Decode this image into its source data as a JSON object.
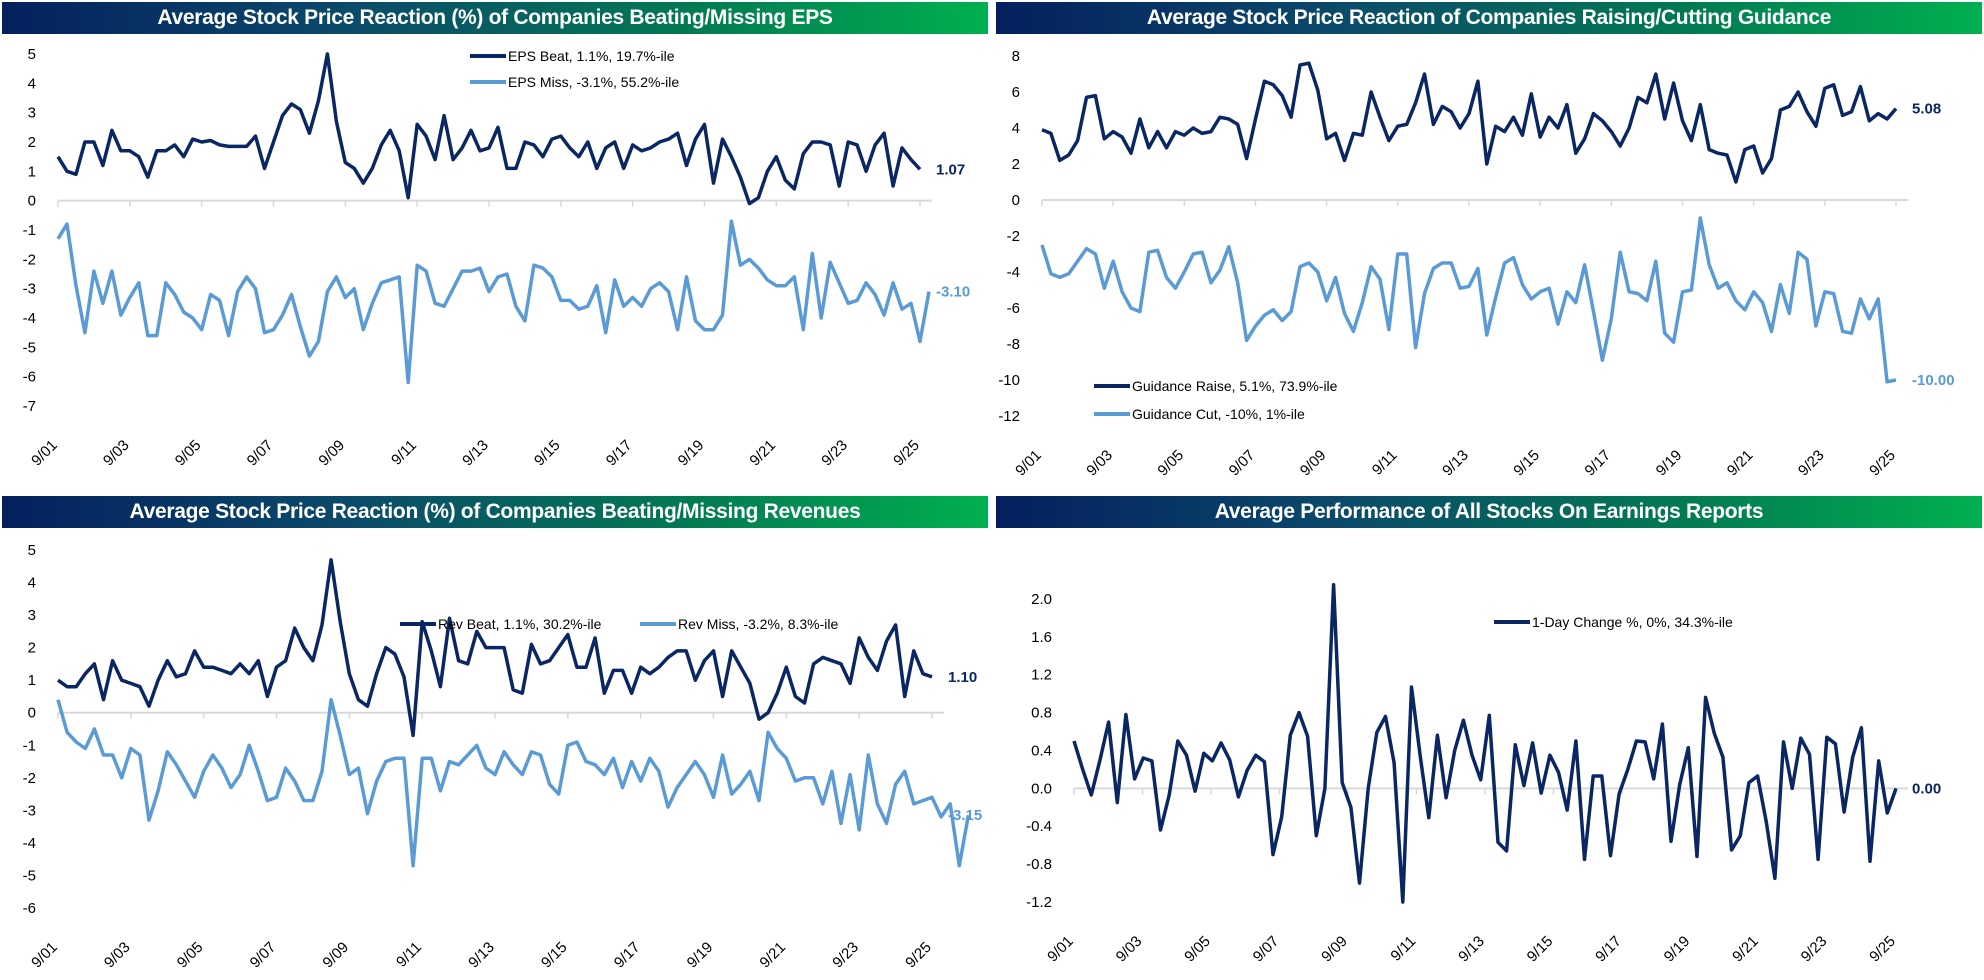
{
  "colors": {
    "dark": "#0a2663",
    "light": "#5b9bd5",
    "grid": "#d9d9d9"
  },
  "x_tick_labels": [
    "9/01",
    "9/03",
    "9/05",
    "9/07",
    "9/09",
    "9/11",
    "9/13",
    "9/15",
    "9/17",
    "9/19",
    "9/21",
    "9/23",
    "9/25"
  ],
  "chart_data": [
    {
      "type": "line",
      "title": "Average Stock Price Reaction (%) of Companies Beating/Missing EPS",
      "xlabel": "",
      "ylabel": "",
      "ylim": [
        -7,
        5
      ],
      "yticks": [
        5,
        4,
        3,
        2,
        1,
        0,
        -1,
        -2,
        -3,
        -4,
        -5,
        -6,
        -7
      ],
      "legend_position": "top-center",
      "series": [
        {
          "name": "EPS Beat, 1.1%, 19.7%-ile",
          "color": "dark",
          "end_label": "1.07",
          "values": [
            1.5,
            1.0,
            0.9,
            2.0,
            2.0,
            1.2,
            2.4,
            1.7,
            1.7,
            1.5,
            0.8,
            1.7,
            1.7,
            1.9,
            1.5,
            2.1,
            2.0,
            2.05,
            1.9,
            1.85,
            1.85,
            1.85,
            2.2,
            1.1,
            2.0,
            2.9,
            3.3,
            3.1,
            2.3,
            3.4,
            5.0,
            2.7,
            1.3,
            1.1,
            0.6,
            1.1,
            1.9,
            2.4,
            1.7,
            0.1,
            2.6,
            2.2,
            1.4,
            2.9,
            1.4,
            1.8,
            2.4,
            1.7,
            1.8,
            2.5,
            1.1,
            1.1,
            2.0,
            1.9,
            1.5,
            2.1,
            2.2,
            1.8,
            1.5,
            2.0,
            1.1,
            1.8,
            2.0,
            1.1,
            1.9,
            1.7,
            1.8,
            2.0,
            2.1,
            2.3,
            1.2,
            2.1,
            2.6,
            0.6,
            2.1,
            1.5,
            0.8,
            -0.1,
            0.1,
            1.0,
            1.5,
            0.7,
            0.4,
            1.6,
            2.0,
            2.0,
            1.9,
            0.5,
            2.0,
            1.9,
            1.0,
            1.9,
            2.3,
            0.5,
            1.8,
            1.4,
            1.07
          ]
        },
        {
          "name": "EPS Miss, -3.1%, 55.2%-ile",
          "color": "light",
          "end_label": "-3.10",
          "values": [
            -1.3,
            -0.8,
            -2.9,
            -4.5,
            -2.4,
            -3.5,
            -2.4,
            -3.9,
            -3.3,
            -2.8,
            -4.6,
            -4.6,
            -2.8,
            -3.2,
            -3.8,
            -4.0,
            -4.4,
            -3.2,
            -3.4,
            -4.6,
            -3.1,
            -2.6,
            -3.0,
            -4.5,
            -4.4,
            -3.9,
            -3.2,
            -4.3,
            -5.3,
            -4.8,
            -3.1,
            -2.6,
            -3.3,
            -3.0,
            -4.4,
            -3.5,
            -2.8,
            -2.7,
            -2.6,
            -6.2,
            -2.2,
            -2.4,
            -3.5,
            -3.6,
            -3.0,
            -2.4,
            -2.4,
            -2.3,
            -3.1,
            -2.6,
            -2.5,
            -3.6,
            -4.1,
            -2.2,
            -2.3,
            -2.6,
            -3.4,
            -3.4,
            -3.7,
            -3.6,
            -2.9,
            -4.5,
            -2.7,
            -3.6,
            -3.3,
            -3.6,
            -3.0,
            -2.8,
            -3.1,
            -4.4,
            -2.6,
            -4.1,
            -4.4,
            -4.4,
            -3.9,
            -0.7,
            -2.2,
            -2.0,
            -2.3,
            -2.7,
            -2.9,
            -2.9,
            -2.6,
            -4.4,
            -1.8,
            -4.0,
            -2.1,
            -2.8,
            -3.5,
            -3.4,
            -2.8,
            -3.2,
            -3.9,
            -2.8,
            -3.7,
            -3.5,
            -4.8,
            -3.1
          ]
        }
      ]
    },
    {
      "type": "line",
      "title": "Average Stock Price Reaction of Companies Raising/Cutting Guidance",
      "xlabel": "",
      "ylabel": "",
      "ylim": [
        -12,
        8
      ],
      "yticks": [
        8,
        6,
        4,
        2,
        0,
        -2,
        -4,
        -6,
        -8,
        -10,
        -12
      ],
      "legend_position": "bottom-left",
      "series": [
        {
          "name": "Guidance Raise, 5.1%, 73.9%-ile",
          "color": "dark",
          "end_label": "5.08",
          "values": [
            3.9,
            3.7,
            2.2,
            2.5,
            3.3,
            5.7,
            5.8,
            3.4,
            3.8,
            3.5,
            2.6,
            4.5,
            2.9,
            3.8,
            2.9,
            3.8,
            3.6,
            4.0,
            3.7,
            3.8,
            4.6,
            4.5,
            4.2,
            2.3,
            4.5,
            6.6,
            6.4,
            5.8,
            4.6,
            7.5,
            7.6,
            6.1,
            3.4,
            3.7,
            2.2,
            3.7,
            3.6,
            6.0,
            4.6,
            3.3,
            4.1,
            4.2,
            5.4,
            7.0,
            4.2,
            5.2,
            4.9,
            4.0,
            4.8,
            6.6,
            2.0,
            4.1,
            3.8,
            4.6,
            3.6,
            5.9,
            3.5,
            4.6,
            4.0,
            5.3,
            2.6,
            3.4,
            4.8,
            4.4,
            3.8,
            3.0,
            4.0,
            5.7,
            5.4,
            7.0,
            4.5,
            6.5,
            4.4,
            3.3,
            5.3,
            2.8,
            2.6,
            2.5,
            1.0,
            2.8,
            3.0,
            1.5,
            2.3,
            5.0,
            5.2,
            6.0,
            4.9,
            4.1,
            6.2,
            6.4,
            4.7,
            4.9,
            6.3,
            4.4,
            4.8,
            4.5,
            5.08
          ]
        },
        {
          "name": "Guidance Cut, -10%, 1%-ile",
          "color": "light",
          "end_label": "-10.00",
          "values": [
            -2.5,
            -4.1,
            -4.3,
            -4.1,
            -3.4,
            -2.7,
            -3.0,
            -4.9,
            -3.4,
            -5.1,
            -6.0,
            -6.2,
            -2.9,
            -2.8,
            -4.3,
            -4.9,
            -4.0,
            -3.0,
            -2.9,
            -4.6,
            -3.9,
            -2.6,
            -4.6,
            -7.8,
            -7.0,
            -6.4,
            -6.1,
            -6.7,
            -6.2,
            -3.7,
            -3.5,
            -4.0,
            -5.6,
            -4.3,
            -6.3,
            -7.3,
            -5.7,
            -3.7,
            -4.4,
            -7.2,
            -3.0,
            -3.0,
            -8.2,
            -5.2,
            -3.8,
            -3.5,
            -3.5,
            -4.9,
            -4.8,
            -3.8,
            -7.5,
            -5.4,
            -3.5,
            -3.2,
            -4.7,
            -5.5,
            -5.1,
            -4.9,
            -6.9,
            -5.1,
            -5.7,
            -3.6,
            -6.2,
            -8.9,
            -6.6,
            -2.9,
            -5.1,
            -5.2,
            -5.6,
            -3.4,
            -7.4,
            -7.9,
            -5.1,
            -5.0,
            -1.0,
            -3.6,
            -4.9,
            -4.6,
            -5.6,
            -6.1,
            -5.1,
            -5.7,
            -7.3,
            -4.7,
            -6.3,
            -2.9,
            -3.3,
            -7.0,
            -5.1,
            -5.2,
            -7.3,
            -7.4,
            -5.5,
            -6.6,
            -5.5,
            -10.1,
            -10.0
          ]
        }
      ]
    },
    {
      "type": "line",
      "title": "Average Stock Price Reaction (%) of Companies Beating/Missing Revenues",
      "xlabel": "",
      "ylabel": "",
      "ylim": [
        -6,
        5
      ],
      "yticks": [
        5,
        4,
        3,
        2,
        1,
        0,
        -1,
        -2,
        -3,
        -4,
        -5,
        -6
      ],
      "legend_position": "top-right",
      "series": [
        {
          "name": "Rev Beat, 1.1%, 30.2%-ile",
          "color": "dark",
          "end_label": "1.10",
          "values": [
            1.0,
            0.8,
            0.8,
            1.2,
            1.5,
            0.4,
            1.6,
            1.0,
            0.9,
            0.8,
            0.2,
            1.0,
            1.6,
            1.1,
            1.2,
            1.9,
            1.4,
            1.4,
            1.3,
            1.2,
            1.5,
            1.2,
            1.6,
            0.5,
            1.4,
            1.6,
            2.6,
            2.0,
            1.6,
            2.7,
            4.7,
            2.8,
            1.2,
            0.4,
            0.2,
            1.2,
            2.0,
            1.8,
            1.1,
            -0.7,
            2.8,
            1.9,
            0.8,
            2.9,
            1.6,
            1.5,
            2.5,
            2.0,
            2.0,
            2.0,
            0.7,
            0.6,
            2.1,
            1.5,
            1.6,
            2.0,
            2.4,
            1.4,
            1.4,
            2.3,
            0.6,
            1.3,
            1.3,
            0.6,
            1.4,
            1.2,
            1.4,
            1.7,
            1.9,
            1.9,
            1.0,
            1.6,
            1.9,
            0.5,
            1.9,
            1.4,
            0.9,
            -0.2,
            0.0,
            0.6,
            1.4,
            0.5,
            0.3,
            1.5,
            1.7,
            1.6,
            1.5,
            0.9,
            2.3,
            1.7,
            1.3,
            2.2,
            2.7,
            0.5,
            1.9,
            1.2,
            1.1
          ]
        },
        {
          "name": "Rev Miss, -3.2%, 8.3%-ile",
          "color": "light",
          "end_label": "-3.15",
          "values": [
            0.4,
            -0.6,
            -0.9,
            -1.1,
            -0.5,
            -1.3,
            -1.3,
            -2.0,
            -1.1,
            -1.3,
            -3.3,
            -2.4,
            -1.2,
            -1.6,
            -2.1,
            -2.6,
            -1.8,
            -1.3,
            -1.7,
            -2.3,
            -1.9,
            -1.0,
            -1.8,
            -2.7,
            -2.6,
            -1.7,
            -2.1,
            -2.7,
            -2.7,
            -1.8,
            0.4,
            -0.7,
            -1.9,
            -1.7,
            -3.1,
            -2.1,
            -1.5,
            -1.4,
            -1.4,
            -4.7,
            -1.4,
            -1.4,
            -2.4,
            -1.5,
            -1.6,
            -1.3,
            -1.0,
            -1.7,
            -1.9,
            -1.2,
            -1.6,
            -1.9,
            -1.2,
            -1.3,
            -2.2,
            -2.5,
            -1.0,
            -0.9,
            -1.5,
            -1.6,
            -1.9,
            -1.4,
            -2.3,
            -1.5,
            -2.1,
            -1.4,
            -1.8,
            -2.9,
            -2.3,
            -1.9,
            -1.5,
            -1.9,
            -2.6,
            -1.3,
            -2.5,
            -2.2,
            -1.8,
            -2.7,
            -0.6,
            -1.1,
            -1.4,
            -2.1,
            -2.0,
            -2.0,
            -2.8,
            -1.8,
            -3.4,
            -1.9,
            -3.6,
            -1.3,
            -2.8,
            -3.4,
            -2.2,
            -1.8,
            -2.8,
            -2.7,
            -2.6,
            -3.2,
            -2.8,
            -4.7,
            -3.15
          ]
        }
      ]
    },
    {
      "type": "line",
      "title": "Average Performance of All Stocks On Earnings Reports",
      "xlabel": "",
      "ylabel": "",
      "ylim": [
        -1.2,
        2.2
      ],
      "yticks": [
        2.0,
        1.6,
        1.2,
        0.8,
        0.4,
        0.0,
        -0.4,
        -0.8,
        -1.2
      ],
      "legend_position": "top-right",
      "series": [
        {
          "name": "1-Day Change %, 0%, 34.3%-ile",
          "color": "dark",
          "end_label": "0.00",
          "values": [
            0.5,
            0.2,
            -0.07,
            0.3,
            0.7,
            -0.15,
            0.78,
            0.1,
            0.32,
            0.29,
            -0.44,
            -0.07,
            0.5,
            0.35,
            -0.03,
            0.37,
            0.29,
            0.48,
            0.3,
            -0.09,
            0.19,
            0.35,
            0.28,
            -0.7,
            -0.3,
            0.56,
            0.8,
            0.55,
            -0.5,
            0.0,
            2.15,
            0.06,
            -0.2,
            -1.0,
            0.0,
            0.59,
            0.76,
            0.27,
            -1.3,
            1.07,
            0.35,
            -0.31,
            0.56,
            -0.1,
            0.4,
            0.72,
            0.35,
            0.09,
            0.77,
            -0.57,
            -0.66,
            0.46,
            0.03,
            0.48,
            -0.05,
            0.35,
            0.17,
            -0.23,
            0.5,
            -0.75,
            0.13,
            0.13,
            -0.71,
            -0.06,
            0.2,
            0.5,
            0.49,
            0.1,
            0.68,
            -0.56,
            0.04,
            0.43,
            -0.72,
            0.96,
            0.58,
            0.33,
            -0.65,
            -0.5,
            0.06,
            0.13,
            -0.35,
            -0.95,
            0.49,
            0.0,
            0.53,
            0.36,
            -0.75,
            0.54,
            0.47,
            -0.25,
            0.33,
            0.64,
            -0.77,
            0.29,
            -0.26,
            0.0
          ]
        }
      ]
    }
  ]
}
